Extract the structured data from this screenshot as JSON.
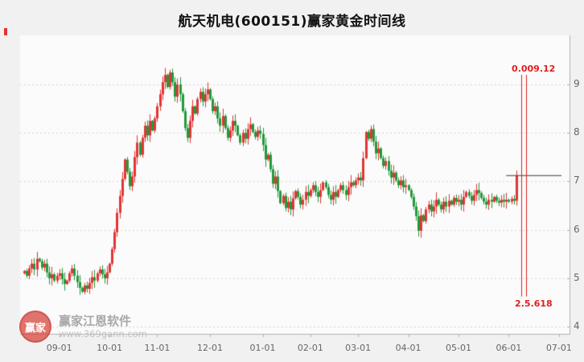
{
  "header": {
    "title": "航天机电(600151)赢家黄金时间线"
  },
  "watermark": {
    "logo_text": "赢家",
    "brand": "赢家江恩软件",
    "url": "www.369gann.com"
  },
  "chart_data": {
    "type": "candlestick",
    "title": "航天机电(600151)赢家黄金时间线",
    "xlabel": "",
    "ylabel": "",
    "y_ticks": [
      9,
      8,
      7,
      6,
      5,
      4
    ],
    "ylim": [
      3.85,
      9.75
    ],
    "x_tick_labels": [
      "09-01",
      "10-01",
      "11-01",
      "12-01",
      "01-01",
      "02-01",
      "03-01",
      "04-01",
      "05-01",
      "06-01",
      "07-01"
    ],
    "x_tick_days": [
      14,
      34,
      53,
      74,
      95,
      114,
      133,
      153,
      173,
      193,
      213
    ],
    "total_days": 214,
    "grid": true,
    "legend_position": "none",
    "up_color": "#e13535",
    "down_color": "#219a3a",
    "axis_color": "#b0b0b0",
    "grid_color": "#d6d6d6",
    "first_open": 5.1,
    "closes": [
      5.15,
      5.05,
      5.2,
      5.3,
      5.18,
      5.4,
      5.35,
      5.22,
      5.3,
      5.12,
      5.0,
      5.08,
      4.95,
      5.05,
      5.1,
      4.98,
      4.88,
      4.95,
      5.1,
      5.2,
      5.05,
      4.92,
      4.8,
      4.72,
      4.85,
      4.78,
      4.9,
      5.02,
      4.95,
      5.1,
      5.18,
      5.08,
      5.0,
      5.12,
      5.3,
      5.6,
      5.95,
      6.35,
      6.7,
      7.05,
      7.45,
      7.2,
      6.9,
      7.1,
      7.5,
      7.8,
      7.55,
      7.9,
      8.15,
      7.95,
      8.25,
      8.05,
      8.3,
      8.55,
      8.8,
      9.05,
      9.2,
      8.95,
      9.25,
      9.05,
      8.75,
      9.0,
      8.8,
      8.45,
      8.1,
      7.9,
      8.25,
      8.55,
      8.4,
      8.7,
      8.85,
      8.65,
      8.8,
      8.9,
      8.7,
      8.45,
      8.55,
      8.3,
      8.15,
      8.35,
      8.1,
      7.9,
      8.05,
      8.25,
      8.15,
      7.95,
      7.8,
      8.0,
      7.88,
      8.08,
      8.18,
      8.02,
      7.92,
      8.05,
      7.98,
      7.75,
      7.45,
      7.55,
      7.25,
      6.95,
      7.1,
      6.8,
      6.55,
      6.7,
      6.45,
      6.58,
      6.42,
      6.65,
      6.8,
      6.68,
      6.52,
      6.62,
      6.78,
      6.7,
      6.82,
      6.92,
      6.78,
      6.68,
      6.82,
      6.98,
      6.88,
      6.72,
      6.62,
      6.78,
      6.68,
      6.82,
      6.92,
      6.82,
      6.72,
      6.88,
      6.98,
      6.92,
      7.02,
      7.08,
      7.02,
      7.48,
      8.02,
      7.88,
      8.08,
      7.82,
      7.58,
      7.68,
      7.48,
      7.32,
      7.42,
      7.22,
      7.08,
      7.18,
      7.02,
      6.92,
      7.02,
      6.88,
      6.92,
      6.82,
      6.68,
      6.48,
      6.28,
      5.98,
      6.3,
      6.18,
      6.42,
      6.52,
      6.38,
      6.48,
      6.62,
      6.52,
      6.42,
      6.58,
      6.48,
      6.6,
      6.52,
      6.66,
      6.58,
      6.62,
      6.52,
      6.68,
      6.78,
      6.7,
      6.6,
      6.72,
      6.82,
      6.76,
      6.66,
      6.58,
      6.52,
      6.62,
      6.58,
      6.68,
      6.6,
      6.56,
      6.62,
      6.58,
      6.62,
      6.58,
      6.64,
      6.6,
      7.12
    ],
    "flat_line": {
      "value": 7.12,
      "from_day": 192,
      "to_day": 214,
      "color": "#3a3a3a"
    },
    "vertical_marker": {
      "days": [
        198,
        200
      ],
      "price_top": 9.2,
      "price_bottom": 4.62,
      "color": "#e01f1f",
      "top_label": "0.009.12",
      "bottom_label": "2.5.618"
    }
  }
}
